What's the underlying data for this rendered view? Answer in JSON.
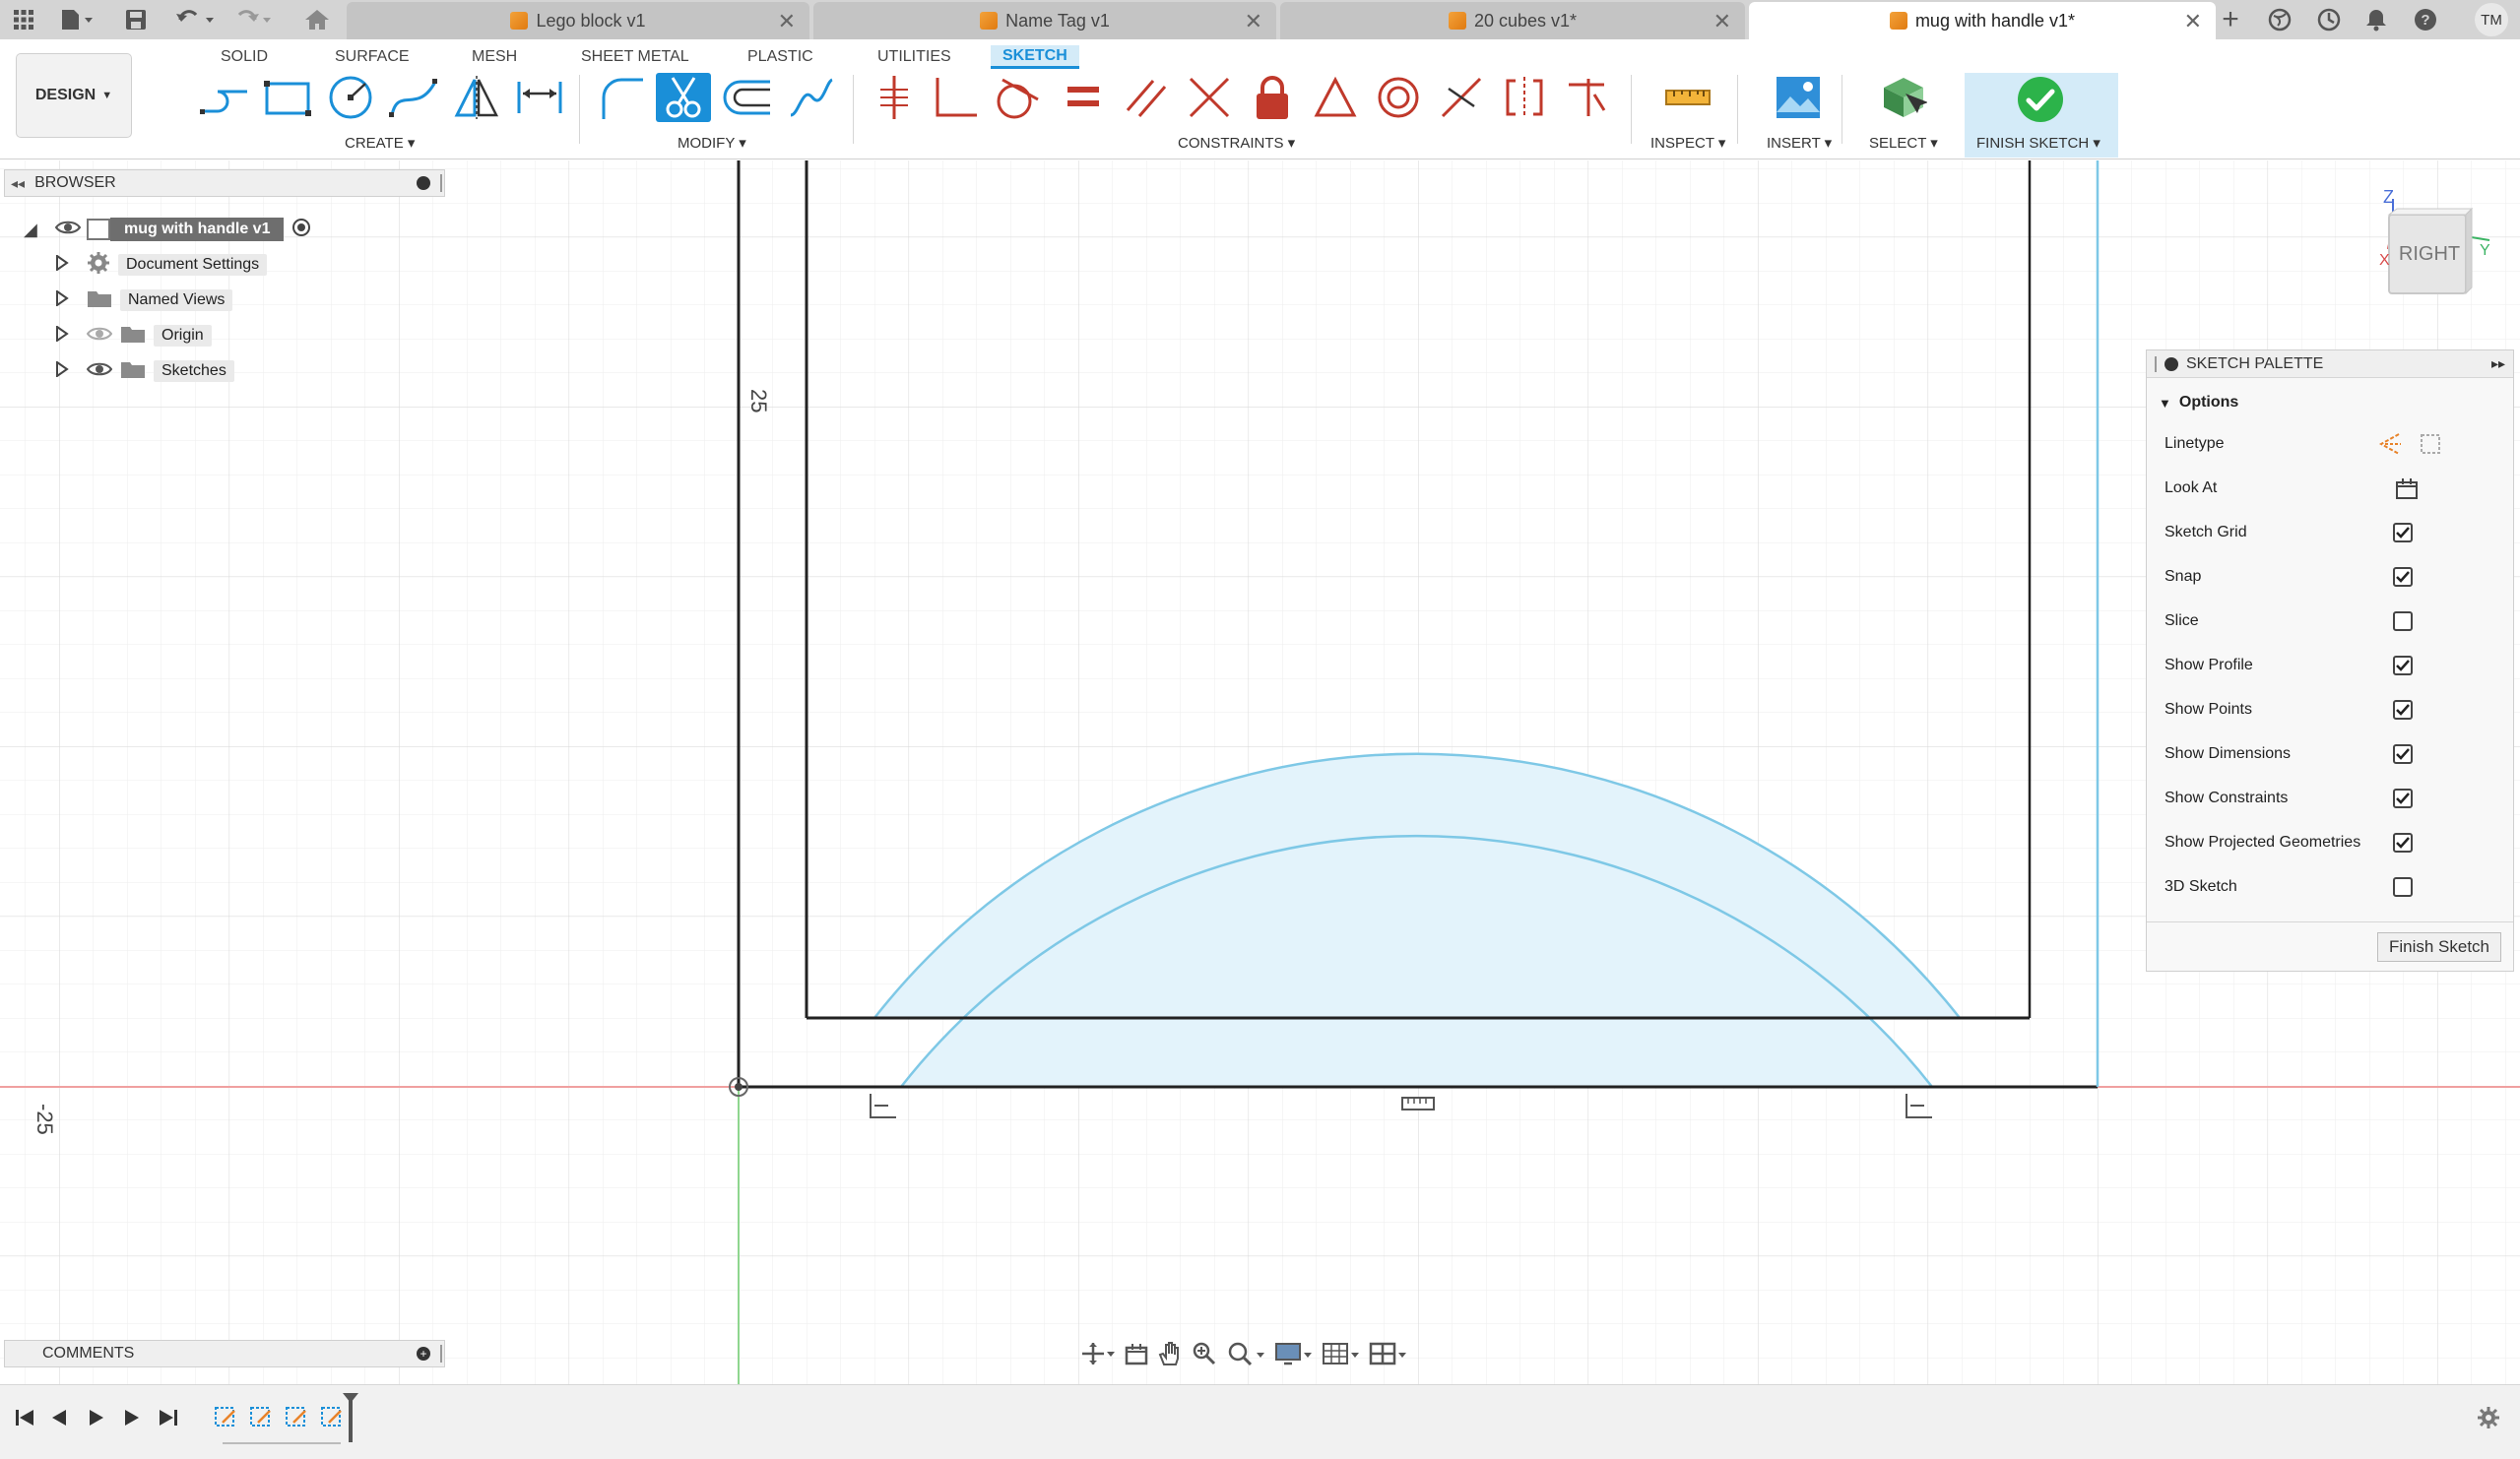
{
  "tabs": [
    {
      "title": "Lego block v1",
      "active": false
    },
    {
      "title": "Name Tag v1",
      "active": false
    },
    {
      "title": "20 cubes v1*",
      "active": false
    },
    {
      "title": "mug with handle v1*",
      "active": true
    }
  ],
  "user_initials": "TM",
  "workspace": {
    "label": "DESIGN"
  },
  "toolbar_tabs": [
    "SOLID",
    "SURFACE",
    "MESH",
    "SHEET METAL",
    "PLASTIC",
    "UTILITIES",
    "SKETCH"
  ],
  "tool_groups": {
    "create": "CREATE",
    "modify": "MODIFY",
    "constraints": "CONSTRAINTS",
    "inspect": "INSPECT",
    "insert": "INSERT",
    "select": "SELECT",
    "finish": "FINISH SKETCH"
  },
  "browser": {
    "title": "BROWSER",
    "root": "mug with handle v1",
    "items": [
      "Document Settings",
      "Named Views",
      "Origin",
      "Sketches"
    ]
  },
  "comments": {
    "title": "COMMENTS"
  },
  "dimension_labels": {
    "vertical": "25",
    "horizontal": "-25"
  },
  "view_cube": {
    "face": "RIGHT",
    "axis_z": "Z",
    "axis_y": "Y",
    "axis_x": "X"
  },
  "sketch_palette": {
    "title": "SKETCH PALETTE",
    "section": "Options",
    "rows": [
      {
        "label": "Linetype",
        "kind": "icons"
      },
      {
        "label": "Look At",
        "kind": "icon"
      },
      {
        "label": "Sketch Grid",
        "kind": "checkbox",
        "checked": true
      },
      {
        "label": "Snap",
        "kind": "checkbox",
        "checked": true
      },
      {
        "label": "Slice",
        "kind": "checkbox",
        "checked": false
      },
      {
        "label": "Show Profile",
        "kind": "checkbox",
        "checked": true
      },
      {
        "label": "Show Points",
        "kind": "checkbox",
        "checked": true
      },
      {
        "label": "Show Dimensions",
        "kind": "checkbox",
        "checked": true
      },
      {
        "label": "Show Constraints",
        "kind": "checkbox",
        "checked": true
      },
      {
        "label": "Show Projected Geometries",
        "kind": "checkbox",
        "checked": true
      },
      {
        "label": "3D Sketch",
        "kind": "checkbox",
        "checked": false
      }
    ],
    "finish_button": "Finish Sketch"
  },
  "colors": {
    "accent": "#1a8fd8",
    "sketch_line": "#7ec8e6",
    "profile_fill": "#e3f3fb",
    "axis_red": "#f0a0a0",
    "axis_green": "#8fd68f",
    "finish_green": "#2cb34a"
  }
}
